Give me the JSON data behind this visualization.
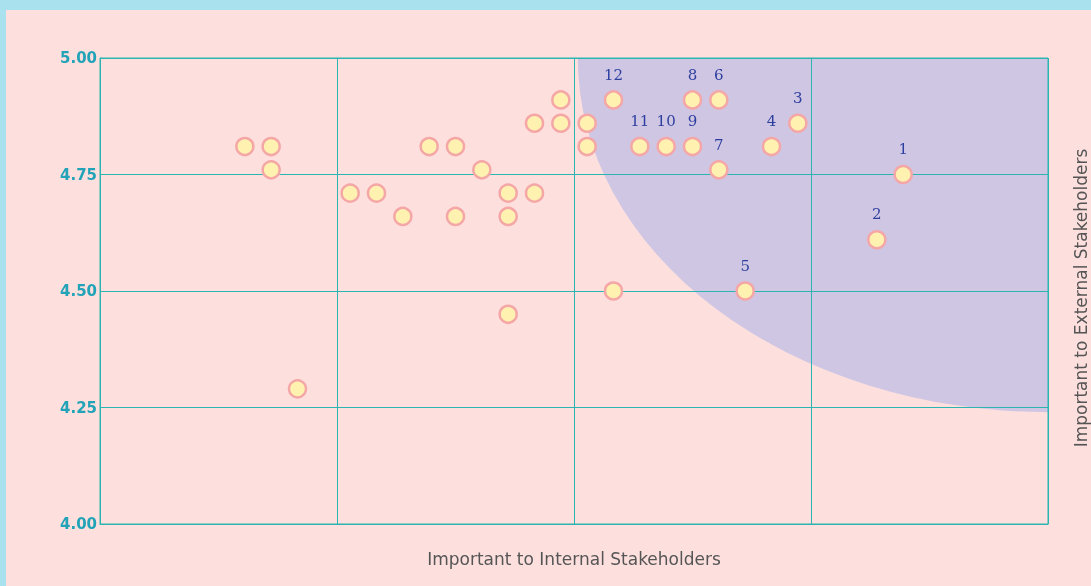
{
  "chart_data": {
    "type": "scatter",
    "xlabel": "Important to Internal Stakeholders",
    "ylabel": "Important to External Stakeholders",
    "categories": [
      null,
      null,
      null,
      null,
      null,
      null,
      null,
      null,
      null,
      null,
      null,
      null,
      null,
      null,
      null,
      null,
      null,
      null,
      null,
      null,
      null,
      null,
      null,
      null,
      null,
      null,
      null,
      null,
      null,
      null,
      null,
      null,
      null,
      null,
      null,
      null
    ],
    "series": [
      {
        "color": "#fff1b0",
        "values": [
          null,
          null,
          null,
          null,
          null,
          4.81,
          4.81,
          4.29,
          null,
          4.71,
          4.71,
          4.66,
          4.81,
          4.81,
          4.76,
          4.71,
          4.71,
          4.91,
          4.86,
          null,
          null,
          null,
          null,
          null,
          null,
          null,
          null,
          null,
          null,
          null,
          null,
          null,
          null,
          null,
          null,
          null
        ]
      },
      {
        "color": "#fff1b0",
        "values": [
          null,
          null,
          null,
          null,
          null,
          null,
          4.76,
          null,
          null,
          null,
          null,
          null,
          null,
          4.66,
          null,
          4.66,
          4.86,
          4.86,
          4.81,
          4.5,
          null,
          null,
          null,
          null,
          null,
          null,
          null,
          null,
          null,
          null,
          null,
          null,
          null,
          null,
          null,
          null
        ]
      },
      {
        "color": "#fff1b0",
        "values": [
          null,
          null,
          null,
          null,
          null,
          null,
          null,
          null,
          null,
          null,
          null,
          null,
          null,
          null,
          null,
          4.45,
          null,
          null,
          null,
          null,
          null,
          null,
          null,
          null,
          null,
          null,
          null,
          null,
          null,
          null,
          null,
          null,
          null,
          null,
          null,
          null
        ]
      },
      {
        "name": "12",
        "color": "#fff1b0",
        "values": [
          null,
          null,
          null,
          null,
          null,
          null,
          null,
          null,
          null,
          null,
          null,
          null,
          null,
          null,
          null,
          null,
          null,
          null,
          null,
          4.91,
          null,
          null,
          null,
          null,
          null,
          null,
          null,
          null,
          null,
          null,
          null,
          null,
          null,
          null,
          null,
          null
        ]
      },
      {
        "name": "11",
        "color": "#fff1b0",
        "values": [
          null,
          null,
          null,
          null,
          null,
          null,
          null,
          null,
          null,
          null,
          null,
          null,
          null,
          null,
          null,
          null,
          null,
          null,
          null,
          null,
          4.81,
          null,
          null,
          null,
          null,
          null,
          null,
          null,
          null,
          null,
          null,
          null,
          null,
          null,
          null,
          null
        ]
      },
      {
        "name": "10",
        "color": "#fff1b0",
        "values": [
          null,
          null,
          null,
          null,
          null,
          null,
          null,
          null,
          null,
          null,
          null,
          null,
          null,
          null,
          null,
          null,
          null,
          null,
          null,
          null,
          null,
          4.81,
          null,
          null,
          null,
          null,
          null,
          null,
          null,
          null,
          null,
          null,
          null,
          null,
          null,
          null
        ]
      },
      {
        "name": "8",
        "color": "#fff1b0",
        "values": [
          null,
          null,
          null,
          null,
          null,
          null,
          null,
          null,
          null,
          null,
          null,
          null,
          null,
          null,
          null,
          null,
          null,
          null,
          null,
          null,
          null,
          null,
          4.91,
          null,
          null,
          null,
          null,
          null,
          null,
          null,
          null,
          null,
          null,
          null,
          null,
          null
        ]
      },
      {
        "name": "9",
        "color": "#fff1b0",
        "values": [
          null,
          null,
          null,
          null,
          null,
          null,
          null,
          null,
          null,
          null,
          null,
          null,
          null,
          null,
          null,
          null,
          null,
          null,
          null,
          null,
          null,
          null,
          4.81,
          null,
          null,
          null,
          null,
          null,
          null,
          null,
          null,
          null,
          null,
          null,
          null,
          null
        ]
      },
      {
        "name": "6",
        "color": "#fff1b0",
        "values": [
          null,
          null,
          null,
          null,
          null,
          null,
          null,
          null,
          null,
          null,
          null,
          null,
          null,
          null,
          null,
          null,
          null,
          null,
          null,
          null,
          null,
          null,
          null,
          4.91,
          null,
          null,
          null,
          null,
          null,
          null,
          null,
          null,
          null,
          null,
          null,
          null
        ]
      },
      {
        "name": "7",
        "color": "#fff1b0",
        "values": [
          null,
          null,
          null,
          null,
          null,
          null,
          null,
          null,
          null,
          null,
          null,
          null,
          null,
          null,
          null,
          null,
          null,
          null,
          null,
          null,
          null,
          null,
          null,
          4.76,
          null,
          null,
          null,
          null,
          null,
          null,
          null,
          null,
          null,
          null,
          null,
          null
        ]
      },
      {
        "name": "5",
        "color": "#fff1b0",
        "values": [
          null,
          null,
          null,
          null,
          null,
          null,
          null,
          null,
          null,
          null,
          null,
          null,
          null,
          null,
          null,
          null,
          null,
          null,
          null,
          null,
          null,
          null,
          null,
          null,
          4.5,
          null,
          null,
          null,
          null,
          null,
          null,
          null,
          null,
          null,
          null,
          null
        ]
      },
      {
        "name": "4",
        "color": "#fff1b0",
        "values": [
          null,
          null,
          null,
          null,
          null,
          null,
          null,
          null,
          null,
          null,
          null,
          null,
          null,
          null,
          null,
          null,
          null,
          null,
          null,
          null,
          null,
          null,
          null,
          null,
          null,
          4.81,
          null,
          null,
          null,
          null,
          null,
          null,
          null,
          null,
          null,
          null
        ]
      },
      {
        "name": "3",
        "color": "#fff1b0",
        "values": [
          null,
          null,
          null,
          null,
          null,
          null,
          null,
          null,
          null,
          null,
          null,
          null,
          null,
          null,
          null,
          null,
          null,
          null,
          null,
          null,
          null,
          null,
          null,
          null,
          null,
          null,
          4.86,
          null,
          null,
          null,
          null,
          null,
          null,
          null,
          null,
          null
        ]
      },
      {
        "name": "2",
        "color": "#fff1b0",
        "values": [
          null,
          null,
          null,
          null,
          null,
          null,
          null,
          null,
          null,
          null,
          null,
          null,
          null,
          null,
          null,
          null,
          null,
          null,
          null,
          null,
          null,
          null,
          null,
          null,
          null,
          null,
          null,
          null,
          null,
          4.61,
          null,
          null,
          null,
          null,
          null,
          null
        ]
      },
      {
        "name": "1",
        "color": "#fff1b0",
        "values": [
          null,
          null,
          null,
          null,
          null,
          null,
          null,
          null,
          null,
          null,
          null,
          null,
          null,
          null,
          null,
          null,
          null,
          null,
          null,
          null,
          null,
          null,
          null,
          null,
          null,
          null,
          null,
          null,
          null,
          null,
          4.75,
          null,
          null,
          null,
          null,
          null
        ]
      }
    ],
    "marker": "circle",
    "ylim": [
      4,
      5
    ],
    "yticks": [
      {
        "value": 4,
        "label": "4.00"
      },
      {
        "value": 4.25,
        "label": "4.25"
      },
      {
        "value": 4.5,
        "label": "4.50"
      },
      {
        "value": 4.75,
        "label": "4.75"
      },
      {
        "value": 5,
        "label": "5.00"
      }
    ],
    "grid": true
  }
}
